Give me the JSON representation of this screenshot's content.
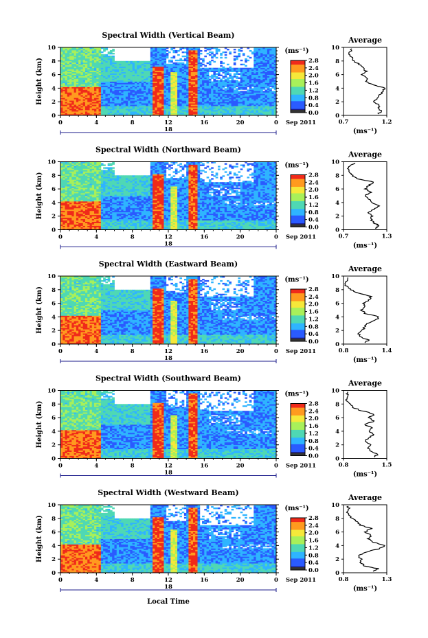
{
  "figure": {
    "panel_titles": [
      "Spectral Width (Vertical Beam)",
      "Spectral Width (Northward Beam)",
      "Spectral Width (Eastward Beam)",
      "Spectral Width (Southward Beam)",
      "Spectral Width (Westward Beam)"
    ],
    "y_label": "Height (km)",
    "x_label": "Local Time",
    "date_day": "18",
    "date_month_year": "Sep 2011",
    "unit_label": "(ms⁻¹)",
    "profile_title": "Average",
    "x_ticks": [
      "0",
      "4",
      "8",
      "12",
      "16",
      "20",
      "0"
    ],
    "y_ticks": [
      "0",
      "2",
      "4",
      "6",
      "8",
      "10"
    ],
    "colorbar_ticks": [
      "0.0",
      "0.4",
      "0.8",
      "1.2",
      "1.6",
      "2.0",
      "2.4",
      "2.8"
    ],
    "colors": [
      "#1a1a8a",
      "#2a5bff",
      "#2fb4ff",
      "#4fd8b4",
      "#a8f05a",
      "#f5e83a",
      "#ff9a1f",
      "#f02a1a"
    ]
  },
  "chart_data": [
    {
      "type": "heatmap",
      "title": "Spectral Width (Vertical Beam)",
      "xlabel": "Local Time",
      "ylabel": "Height (km)",
      "xlim": [
        0,
        24
      ],
      "ylim": [
        0,
        10
      ],
      "colorbar": {
        "label": "(ms⁻¹)",
        "range": [
          0.0,
          2.8
        ]
      },
      "profile": {
        "title": "Average",
        "xlabel": "(ms⁻¹)",
        "xticks": [
          "0.7",
          "1.2"
        ],
        "xlim": [
          0.7,
          1.2
        ],
        "points": [
          [
            1.1,
            0.2
          ],
          [
            1.15,
            0.6
          ],
          [
            1.1,
            1.0
          ],
          [
            1.12,
            1.5
          ],
          [
            1.05,
            2.0
          ],
          [
            1.08,
            2.5
          ],
          [
            1.12,
            3.0
          ],
          [
            1.15,
            3.5
          ],
          [
            1.18,
            4.0
          ],
          [
            1.05,
            4.5
          ],
          [
            0.95,
            5.0
          ],
          [
            0.98,
            5.5
          ],
          [
            0.92,
            6.0
          ],
          [
            0.96,
            6.5
          ],
          [
            0.93,
            7.0
          ],
          [
            0.88,
            7.5
          ],
          [
            0.82,
            8.0
          ],
          [
            0.8,
            8.5
          ],
          [
            0.76,
            9.0
          ],
          [
            0.78,
            9.5
          ],
          [
            0.8,
            9.9
          ]
        ]
      }
    },
    {
      "type": "heatmap",
      "title": "Spectral Width (Northward Beam)",
      "xlabel": "Local Time",
      "ylabel": "Height (km)",
      "xlim": [
        0,
        24
      ],
      "ylim": [
        0,
        10
      ],
      "colorbar": {
        "label": "(ms⁻¹)",
        "range": [
          0.0,
          2.8
        ]
      },
      "profile": {
        "title": "Average",
        "xlabel": "(ms⁻¹)",
        "xticks": [
          "0.7",
          "1.3"
        ],
        "xlim": [
          0.7,
          1.3
        ],
        "points": [
          [
            1.15,
            0.2
          ],
          [
            1.2,
            0.6
          ],
          [
            1.12,
            1.0
          ],
          [
            1.08,
            1.5
          ],
          [
            1.1,
            2.0
          ],
          [
            1.05,
            2.5
          ],
          [
            1.12,
            3.0
          ],
          [
            1.2,
            3.5
          ],
          [
            1.1,
            4.0
          ],
          [
            1.05,
            4.5
          ],
          [
            1.0,
            5.0
          ],
          [
            1.08,
            5.5
          ],
          [
            1.0,
            6.0
          ],
          [
            1.05,
            6.5
          ],
          [
            1.12,
            7.0
          ],
          [
            0.9,
            7.5
          ],
          [
            0.82,
            8.0
          ],
          [
            0.78,
            8.5
          ],
          [
            0.75,
            9.0
          ],
          [
            0.8,
            9.5
          ],
          [
            0.9,
            9.9
          ]
        ]
      }
    },
    {
      "type": "heatmap",
      "title": "Spectral Width (Eastward Beam)",
      "xlabel": "Local Time",
      "ylabel": "Height (km)",
      "xlim": [
        0,
        24
      ],
      "ylim": [
        0,
        10
      ],
      "colorbar": {
        "label": "(ms⁻¹)",
        "range": [
          0.0,
          2.8
        ]
      },
      "profile": {
        "title": "Average",
        "xlabel": "(ms⁻¹)",
        "xticks": [
          "0.8",
          "1.4"
        ],
        "xlim": [
          0.8,
          1.4
        ],
        "points": [
          [
            1.1,
            0.2
          ],
          [
            1.15,
            0.6
          ],
          [
            1.05,
            1.0
          ],
          [
            1.0,
            1.5
          ],
          [
            1.05,
            2.0
          ],
          [
            1.1,
            2.5
          ],
          [
            1.12,
            3.0
          ],
          [
            1.25,
            3.5
          ],
          [
            1.3,
            4.0
          ],
          [
            1.1,
            4.5
          ],
          [
            1.05,
            5.0
          ],
          [
            1.1,
            5.5
          ],
          [
            1.08,
            6.0
          ],
          [
            1.15,
            6.5
          ],
          [
            1.18,
            7.0
          ],
          [
            1.0,
            7.5
          ],
          [
            0.9,
            8.0
          ],
          [
            0.84,
            8.5
          ],
          [
            0.82,
            9.0
          ],
          [
            0.86,
            9.5
          ],
          [
            0.84,
            9.9
          ]
        ]
      }
    },
    {
      "type": "heatmap",
      "title": "Spectral Width (Southward Beam)",
      "xlabel": "Local Time",
      "ylabel": "Height (km)",
      "xlim": [
        0,
        24
      ],
      "ylim": [
        0,
        10
      ],
      "colorbar": {
        "label": "(ms⁻¹)",
        "range": [
          0.0,
          2.8
        ]
      },
      "profile": {
        "title": "Average",
        "xlabel": "(ms⁻¹)",
        "xticks": [
          "0.8",
          "1.5"
        ],
        "xlim": [
          0.8,
          1.5
        ],
        "points": [
          [
            1.3,
            0.2
          ],
          [
            1.35,
            0.6
          ],
          [
            1.25,
            1.0
          ],
          [
            1.2,
            1.5
          ],
          [
            1.25,
            2.0
          ],
          [
            1.15,
            2.5
          ],
          [
            1.2,
            3.0
          ],
          [
            1.3,
            3.5
          ],
          [
            1.2,
            4.0
          ],
          [
            1.25,
            4.5
          ],
          [
            1.15,
            5.0
          ],
          [
            1.3,
            5.5
          ],
          [
            1.2,
            6.0
          ],
          [
            1.3,
            6.5
          ],
          [
            1.1,
            7.0
          ],
          [
            0.95,
            7.5
          ],
          [
            0.9,
            8.0
          ],
          [
            0.85,
            8.5
          ],
          [
            0.88,
            9.0
          ],
          [
            0.86,
            9.5
          ],
          [
            0.9,
            9.9
          ]
        ]
      }
    },
    {
      "type": "heatmap",
      "title": "Spectral Width (Westward Beam)",
      "xlabel": "Local Time",
      "ylabel": "Height (km)",
      "xlim": [
        0,
        24
      ],
      "ylim": [
        0,
        10
      ],
      "colorbar": {
        "label": "(ms⁻¹)",
        "range": [
          0.0,
          2.8
        ]
      },
      "profile": {
        "title": "Average",
        "xlabel": "(ms⁻¹)",
        "xticks": [
          "0.8",
          "1.3"
        ],
        "xlim": [
          0.8,
          1.3
        ],
        "points": [
          [
            1.15,
            0.2
          ],
          [
            1.2,
            0.6
          ],
          [
            1.05,
            1.0
          ],
          [
            1.0,
            1.5
          ],
          [
            1.0,
            2.0
          ],
          [
            0.98,
            2.5
          ],
          [
            1.05,
            3.0
          ],
          [
            1.2,
            3.5
          ],
          [
            1.28,
            4.0
          ],
          [
            1.15,
            4.5
          ],
          [
            1.08,
            5.0
          ],
          [
            1.12,
            5.5
          ],
          [
            1.05,
            6.0
          ],
          [
            1.12,
            6.5
          ],
          [
            1.0,
            7.0
          ],
          [
            0.95,
            7.5
          ],
          [
            0.9,
            8.0
          ],
          [
            0.85,
            8.5
          ],
          [
            0.84,
            9.0
          ],
          [
            0.86,
            9.5
          ],
          [
            0.85,
            9.9
          ]
        ]
      }
    }
  ]
}
